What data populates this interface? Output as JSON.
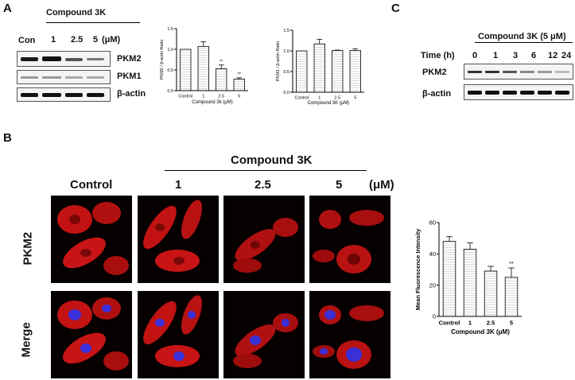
{
  "panel_a": {
    "letter": "A",
    "treatment": "Compound 3K",
    "lanes": [
      "Con",
      "1",
      "2.5",
      "5"
    ],
    "unit": "(μM)",
    "bands": [
      "PKM2",
      "PKM1",
      "β-actin"
    ]
  },
  "panel_b": {
    "letter": "B",
    "treatment": "Compound 3K",
    "columns": [
      "Control",
      "1",
      "2.5",
      "5"
    ],
    "unit": "(μM)",
    "rows": [
      "PKM2",
      "Merge"
    ]
  },
  "panel_c": {
    "letter": "C",
    "treatment": "Compound 3K (5 μM)",
    "time_label": "Time (h)",
    "times": [
      "0",
      "1",
      "3",
      "6",
      "12",
      "24"
    ],
    "bands": [
      "PKM2",
      "β-actin"
    ]
  },
  "chart_data": [
    {
      "type": "bar",
      "categories": [
        "Control",
        "1",
        "2.5",
        "5"
      ],
      "values": [
        1.0,
        1.07,
        0.53,
        0.28
      ],
      "errors": [
        0,
        0.11,
        0.09,
        0.03
      ],
      "significance": [
        "",
        "",
        "**",
        "**"
      ],
      "xlabel": "Compound 3k (μM)",
      "ylabel": "PKM2 / β-actin Ratio",
      "ylim": [
        0,
        1.5
      ],
      "yticks": [
        "0.0",
        "0.5",
        "1.0",
        "1.5"
      ]
    },
    {
      "type": "bar",
      "categories": [
        "Control",
        "1",
        "2.5",
        "5"
      ],
      "values": [
        1.0,
        1.17,
        1.01,
        1.01
      ],
      "errors": [
        0,
        0.11,
        0.01,
        0.04
      ],
      "significance": [
        "",
        "",
        "",
        ""
      ],
      "xlabel": "Compound 3K (μM)",
      "ylabel": "PKM1 / β-actin Ratio",
      "ylim": [
        0,
        1.5
      ],
      "yticks": [
        "0.0",
        "0.5",
        "1.0",
        "1.5"
      ]
    },
    {
      "type": "bar",
      "categories": [
        "Control",
        "1",
        "2.5",
        "5"
      ],
      "values": [
        48,
        43,
        29,
        25
      ],
      "errors": [
        3,
        4,
        3,
        6
      ],
      "significance": [
        "",
        "",
        "",
        "**"
      ],
      "xlabel": "Compound 3K (μM)",
      "ylabel": "Mean Fluorescence Intensity",
      "ylim": [
        0,
        60
      ],
      "yticks": [
        "0",
        "20",
        "40",
        "60"
      ]
    }
  ]
}
